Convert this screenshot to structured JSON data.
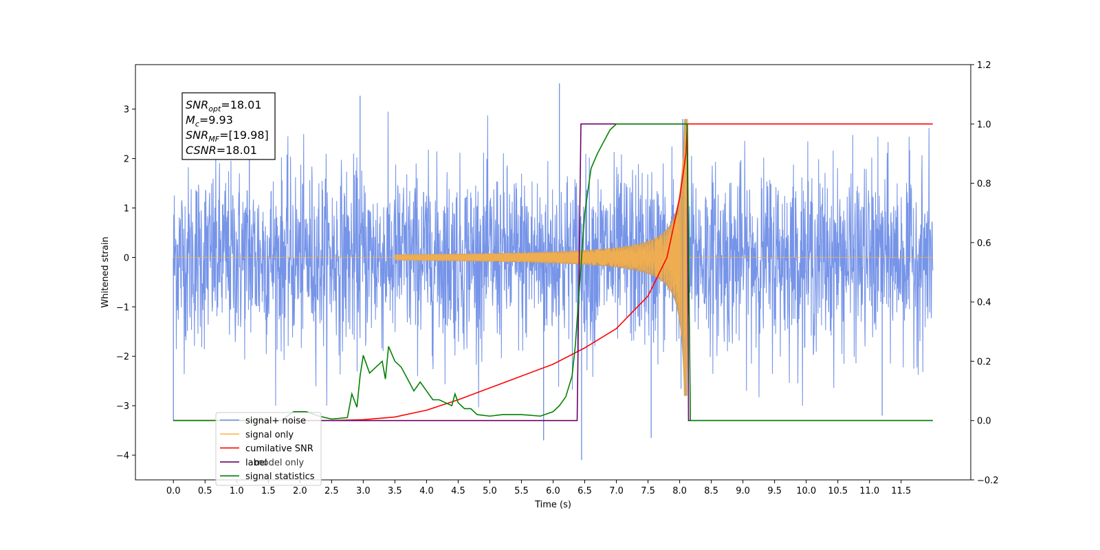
{
  "chart_data": {
    "type": "line",
    "title": "",
    "xlabel": "Time (s)",
    "ylabel": "Whitened strain",
    "xlim": [
      -0.6,
      12.6
    ],
    "ylim": [
      -4.5,
      3.9
    ],
    "ylim_right": [
      -0.2,
      1.2
    ],
    "x_ticks": [
      "0.0",
      "0.5",
      "1.0",
      "1.5",
      "2.0",
      "2.5",
      "3.0",
      "3.5",
      "4.0",
      "4.5",
      "5.0",
      "5.5",
      "6.0",
      "6.5",
      "7.0",
      "7.5",
      "8.0",
      "8.5",
      "9.0",
      "9.5",
      "10.0",
      "10.5",
      "11.0",
      "11.5"
    ],
    "y_ticks": [
      "3",
      "2",
      "1",
      "0",
      "−1",
      "−2",
      "−3",
      "−4"
    ],
    "y_ticks_right": [
      "1.2",
      "1.0",
      "0.8",
      "0.6",
      "0.4",
      "0.2",
      "0.0",
      "−0.2"
    ],
    "grid": false,
    "legend_position": "lower-left",
    "annotation": {
      "lines": [
        {
          "main": "SNR",
          "sub": "opt",
          "rest": "=18.01"
        },
        {
          "main": "M",
          "sub": "c",
          "rest": "=9.93"
        },
        {
          "main": "SNR",
          "sub": "MF",
          "rest": "=[19.98]"
        },
        {
          "main": "CSNR",
          "sub": "",
          "rest": "=18.01"
        }
      ]
    },
    "series": [
      {
        "name": "signal+ noise",
        "color": "#6a8be6",
        "axis": "left",
        "kind": "noise",
        "x_range": [
          0.0,
          12.0
        ],
        "std": 0.9,
        "peaks": [
          [
            0.0,
            -3.3
          ],
          [
            6.1,
            3.52
          ],
          [
            6.45,
            -4.1
          ],
          [
            5.85,
            -3.7
          ],
          [
            7.55,
            -3.65
          ],
          [
            8.05,
            2.8
          ],
          [
            2.95,
            3.27
          ],
          [
            11.2,
            -3.2
          ],
          [
            1.2,
            2.95
          ]
        ]
      },
      {
        "name": "signal only",
        "color": "#ffb347",
        "axis": "left",
        "kind": "chirp",
        "t_start": 3.5,
        "t_merger": 8.12,
        "peak_amplitude": 2.8
      },
      {
        "name": "cumilative SNR",
        "color": "#ff0000",
        "axis": "right",
        "x": [
          0.0,
          2.5,
          3.0,
          3.5,
          4.0,
          4.5,
          5.0,
          5.5,
          6.0,
          6.5,
          7.0,
          7.5,
          7.8,
          8.0,
          8.1,
          8.12,
          8.2,
          9.0,
          10.0,
          11.0,
          12.0
        ],
        "values": [
          0.0,
          0.0,
          0.003,
          0.012,
          0.035,
          0.07,
          0.11,
          0.15,
          0.19,
          0.245,
          0.31,
          0.42,
          0.55,
          0.75,
          0.9,
          1.0,
          1.0,
          1.0,
          1.0,
          1.0,
          1.0
        ]
      },
      {
        "name": "label",
        "color": "#6a006a",
        "axis": "right",
        "x": [
          0.0,
          6.38,
          6.44,
          8.12,
          8.14,
          12.0
        ],
        "values": [
          0.0,
          0.0,
          1.0,
          1.0,
          0.0,
          0.0
        ]
      },
      {
        "name": "signal statistics",
        "color": "#008000",
        "axis": "right",
        "x": [
          0.0,
          1.7,
          1.9,
          2.1,
          2.3,
          2.5,
          2.75,
          2.82,
          2.9,
          2.95,
          3.0,
          3.1,
          3.2,
          3.3,
          3.35,
          3.4,
          3.5,
          3.6,
          3.7,
          3.8,
          3.9,
          4.0,
          4.1,
          4.2,
          4.3,
          4.4,
          4.45,
          4.5,
          4.6,
          4.7,
          4.8,
          5.0,
          5.2,
          5.5,
          5.8,
          6.0,
          6.1,
          6.2,
          6.3,
          6.35,
          6.45,
          6.5,
          6.6,
          6.7,
          6.8,
          6.9,
          7.0,
          7.2,
          7.5,
          8.0,
          8.12,
          8.17,
          12.0
        ],
        "values": [
          0.0,
          0.0,
          0.03,
          0.03,
          0.015,
          0.005,
          0.01,
          0.09,
          0.045,
          0.15,
          0.22,
          0.16,
          0.18,
          0.2,
          0.14,
          0.25,
          0.2,
          0.18,
          0.14,
          0.1,
          0.13,
          0.1,
          0.07,
          0.07,
          0.06,
          0.05,
          0.09,
          0.06,
          0.04,
          0.04,
          0.02,
          0.015,
          0.02,
          0.02,
          0.015,
          0.03,
          0.05,
          0.08,
          0.15,
          0.25,
          0.55,
          0.7,
          0.85,
          0.9,
          0.94,
          0.98,
          1.0,
          1.0,
          1.0,
          1.0,
          1.0,
          0.0,
          0.0
        ]
      }
    ],
    "legend_label_overlay": "model only"
  }
}
